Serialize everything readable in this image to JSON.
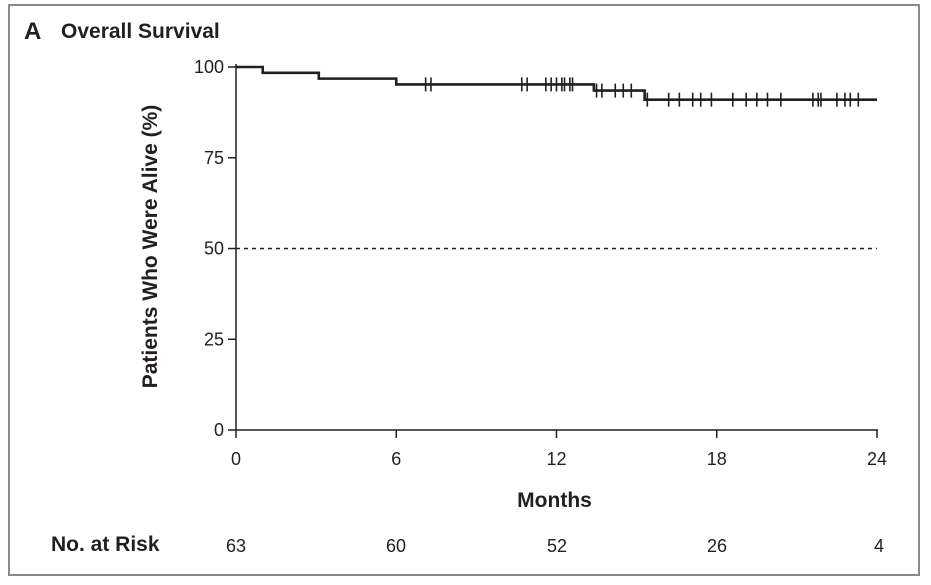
{
  "panel": {
    "letter": "A",
    "title": "Overall Survival"
  },
  "chart_data": {
    "type": "line",
    "title": "Overall Survival",
    "xlabel": "Months",
    "ylabel": "Patients Who Were Alive (%)",
    "xlim": [
      0,
      24
    ],
    "ylim": [
      0,
      100
    ],
    "xticks": [
      0,
      6,
      12,
      18,
      24
    ],
    "yticks": [
      0,
      25,
      50,
      75,
      100
    ],
    "reference_line": {
      "y": 50,
      "style": "dashed"
    },
    "series": [
      {
        "step": true,
        "x": [
          0,
          1.0,
          3.1,
          6.0,
          13.4,
          15.3,
          24
        ],
        "y": [
          100,
          98.4,
          96.8,
          95.2,
          93.5,
          91.0,
          91.0
        ],
        "censor_x": [
          7.1,
          7.3,
          10.7,
          10.9,
          11.6,
          11.8,
          12.0,
          12.2,
          12.3,
          12.5,
          12.6,
          13.5,
          13.7,
          14.2,
          14.5,
          14.8,
          15.4,
          16.2,
          16.6,
          17.1,
          17.4,
          17.8,
          18.6,
          19.1,
          19.5,
          19.9,
          20.4,
          21.6,
          21.8,
          21.9,
          22.5,
          22.8,
          23.0,
          23.3
        ]
      }
    ],
    "color": "#231f20"
  },
  "risk_table": {
    "title": "No. at Risk",
    "values": [
      "63",
      "60",
      "52",
      "26",
      "4"
    ]
  }
}
